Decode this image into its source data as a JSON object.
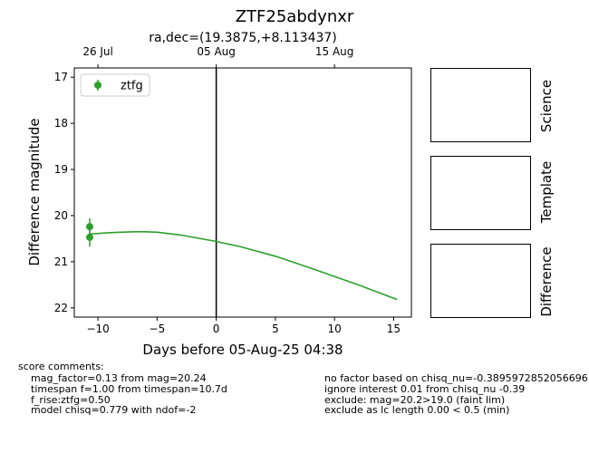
{
  "title": "ZTF25abdynxr",
  "subtitle": "ra,dec=(19.3875,+8.113437)",
  "chart_data": {
    "type": "scatter",
    "xlabel": "Days before 05-Aug-25 04:38",
    "ylabel": "Difference magnitude",
    "xlim": [
      -12,
      16.5
    ],
    "ylim": [
      22.2,
      16.8
    ],
    "inverted_y": true,
    "xticks": [
      -10,
      -5,
      0,
      5,
      10,
      15
    ],
    "yticks": [
      17,
      18,
      19,
      20,
      21,
      22
    ],
    "top_axis_ticks": [
      {
        "x": -10,
        "label": "26 Jul"
      },
      {
        "x": 0,
        "label": "05 Aug"
      },
      {
        "x": 10,
        "label": "15 Aug"
      }
    ],
    "vline_x": 0,
    "legend": {
      "placement": "top-left",
      "entries": [
        "ztfg"
      ]
    },
    "series": [
      {
        "name": "ztfg",
        "color": "#2ca02c",
        "points": [
          {
            "x": -10.7,
            "y": 20.24,
            "err": 0.18
          },
          {
            "x": -10.7,
            "y": 20.47,
            "err": 0.2
          }
        ]
      }
    ],
    "model_curve": {
      "color": "#2ca02c",
      "x": [
        -10.7,
        -9,
        -7,
        -6,
        -5,
        -3,
        0,
        2,
        5,
        8,
        10,
        12,
        15.3
      ],
      "y": [
        20.4,
        20.37,
        20.35,
        20.35,
        20.36,
        20.42,
        20.56,
        20.67,
        20.88,
        21.14,
        21.32,
        21.5,
        21.82
      ]
    }
  },
  "panels": [
    "Science",
    "Template",
    "Difference"
  ],
  "score_comments_header": "score comments:",
  "comments_left": [
    "mag_factor=0.13 from mag=20.24",
    "timespan f=1.00 from timespan=10.7d",
    "f_rise:ztfg=0.50",
    "model chisq=0.779 with ndof=-2"
  ],
  "comments_right": [
    "no factor based on chisq_nu=-0.3895972852056696",
    "ignore interest 0.01 from chisq_nu -0.39",
    "exclude: mag=20.2>19.0 (faint lim)",
    "exclude as lc length 0.00 < 0.5 (min)"
  ]
}
